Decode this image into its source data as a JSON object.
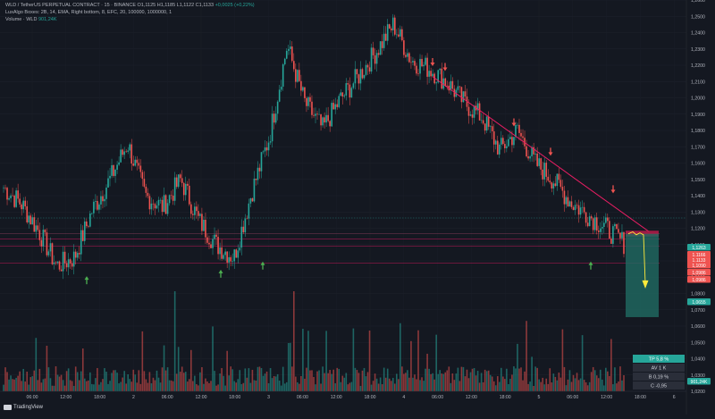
{
  "legend": {
    "line1": {
      "label": "WLD / TetherUS PERPETUAL CONTRACT · 15 · BINANCE",
      "ohlc": "O1,1125 H1,1185 L1,1122 C1,1133",
      "change": "+0,0025 (+0,22%)"
    },
    "line2": {
      "label": "LuxAlgo Boxes: 2B, 14, EMA, Right bottom, 8, EFC, 20, 100000, 1000000, 1",
      "value": ""
    },
    "line3": {
      "label": "Volume · WLD",
      "value": "901,24K"
    }
  },
  "price_axis_ticks": [
    "1,2600",
    "1,2500",
    "1,2400",
    "1,2300",
    "1,2200",
    "1,2100",
    "1,2000",
    "1,1900",
    "1,1800",
    "1,1700",
    "1,1600",
    "1,1500",
    "1,1400",
    "1,1300",
    "1,1200",
    "1,1100",
    "1,1000",
    "1,0900",
    "1,0800",
    "1,0700",
    "1,0600",
    "1,0500",
    "1,0400",
    "1,0300",
    "1,0200"
  ],
  "price_badges": [
    {
      "text": "1,1263",
      "color": "#26a69a"
    },
    {
      "text": "1,1166",
      "color": "#ef5350"
    },
    {
      "text": "1,1133",
      "color": "#ef5350"
    },
    {
      "text": "1,1090",
      "color": "#ef5350"
    },
    {
      "text": "1,0986",
      "color": "#ef5350"
    },
    {
      "text": "1,0986",
      "color": "#ef5350"
    },
    {
      "text": "1,0655",
      "color": "#26a69a"
    }
  ],
  "time_axis_ticks": [
    "06:00",
    "12:00",
    "18:00",
    "2",
    "06:00",
    "12:00",
    "18:00",
    "3",
    "06:00",
    "12:00",
    "18:00",
    "4",
    "06:00",
    "12:00",
    "18:00",
    "5",
    "06:00",
    "12:00",
    "18:00",
    "6"
  ],
  "trade_box": {
    "tp": "TP 5,8 %",
    "av": "AV 1 K",
    "b": "B 0,19 %",
    "c": "C -0,95"
  },
  "volume_badge": "901,24K",
  "brand": "TradingView",
  "colors": {
    "up": "#26a69a",
    "down": "#ef5350",
    "trend": "#e91e63",
    "target": "#ffeb3b"
  },
  "chart_data": {
    "type": "candlestick",
    "symbol": "WLD / TetherUS PERPETUAL CONTRACT",
    "interval": "15",
    "ylim": [
      1.02,
      1.26
    ],
    "waypoints": [
      1.145,
      1.135,
      1.118,
      1.097,
      1.102,
      1.131,
      1.15,
      1.172,
      1.14,
      1.133,
      1.15,
      1.125,
      1.11,
      1.102,
      1.142,
      1.176,
      1.232,
      1.197,
      1.181,
      1.199,
      1.213,
      1.228,
      1.245,
      1.223,
      1.218,
      1.21,
      1.197,
      1.188,
      1.168,
      1.18,
      1.16,
      1.15,
      1.136,
      1.128,
      1.12,
      1.111
    ],
    "levels": [
      1.1166,
      1.1133,
      1.109,
      1.0986
    ],
    "trendline": {
      "from": 1.213,
      "to": 1.118
    },
    "target_zone": [
      1.1166,
      1.0655
    ]
  }
}
